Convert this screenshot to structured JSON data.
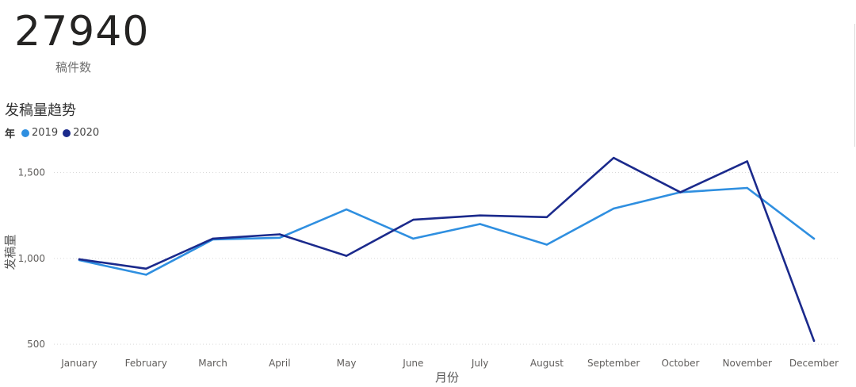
{
  "kpi": {
    "value": "27940",
    "label": "稿件数"
  },
  "chart_data": {
    "type": "line",
    "title": "发稿量趋势",
    "legend_title": "年",
    "legend_position": "top-left",
    "xlabel": "月份",
    "ylabel": "发稿量",
    "ylim": [
      450,
      1650
    ],
    "yticks": [
      500,
      1000,
      1500
    ],
    "ytick_labels": [
      "500",
      "1,000",
      "1,500"
    ],
    "grid": true,
    "categories": [
      "January",
      "February",
      "March",
      "April",
      "May",
      "June",
      "July",
      "August",
      "September",
      "October",
      "November",
      "December"
    ],
    "series": [
      {
        "name": "2019",
        "color": "#2f8fe0",
        "values": [
          990,
          905,
          1110,
          1120,
          1285,
          1115,
          1200,
          1080,
          1290,
          1385,
          1410,
          1115
        ]
      },
      {
        "name": "2020",
        "color": "#1b2a8c",
        "values": [
          995,
          940,
          1115,
          1140,
          1015,
          1225,
          1250,
          1240,
          1585,
          1385,
          1565,
          520
        ]
      }
    ]
  }
}
